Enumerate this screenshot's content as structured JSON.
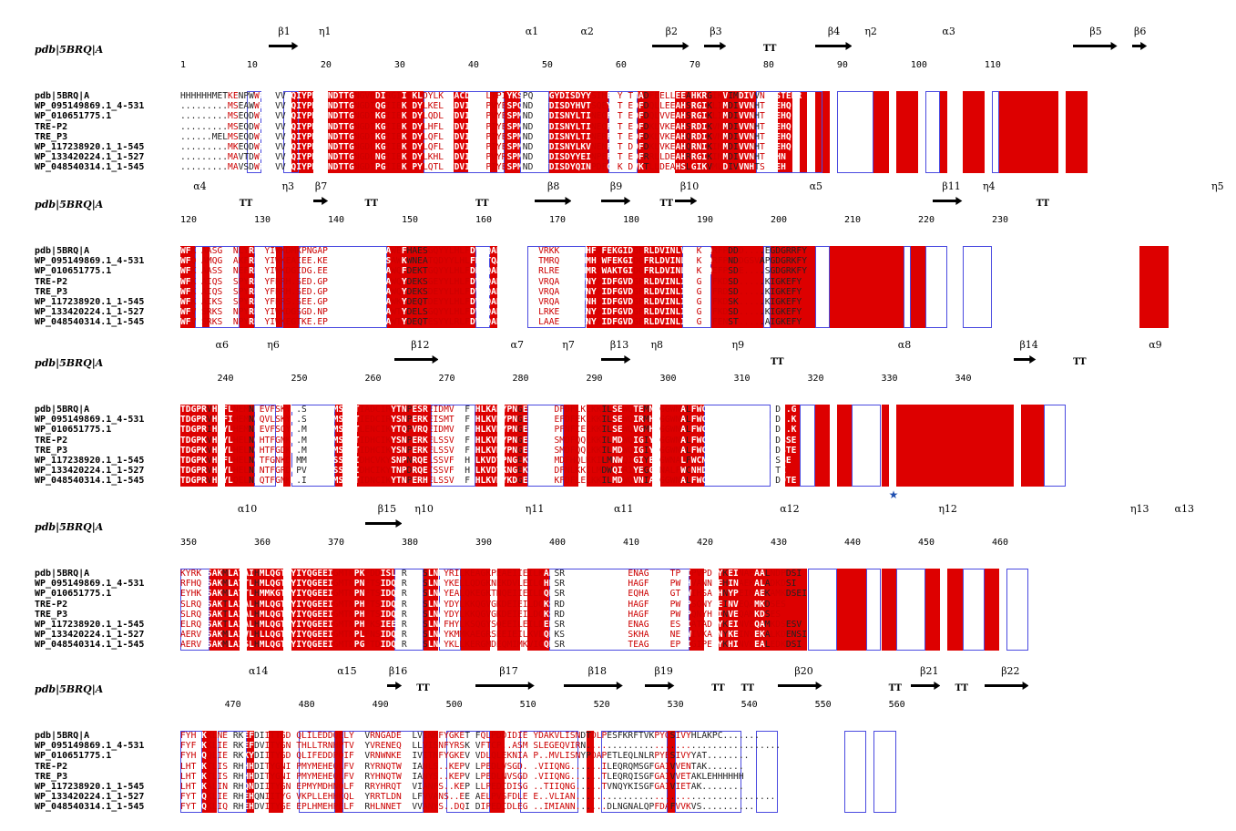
{
  "title_label": "pdb|5BRQ|A",
  "names": [
    "pdb|5BRQ|A",
    "WP_095149869.1_4-531",
    "WP_010651775.1",
    "TRE-P2",
    "TRE_P3",
    "WP_117238920.1_1-545",
    "WP_133420224.1_1-527",
    "WP_048540314.1_1-545"
  ],
  "blocks": [
    {
      "ruler": [
        "1",
        "10",
        "20",
        "30",
        "40",
        "50",
        "60",
        "70",
        "80",
        "90",
        "100",
        "110"
      ],
      "ss": [
        "β1",
        "η1",
        "α1",
        "α2",
        "β2",
        "β3",
        "TT",
        "β4",
        "η2",
        "α3",
        "β5",
        "β6"
      ],
      "seqs": [
        "HHHHHHMETKENPWWRKAVVYQIYPKSFNDTTGNGVGDIRGIIEKLDYLKELACDVIWLTPIYKSPQNDNGYDISDYYSIHEEYGTMADFEELLEEAHKRGIKVIMDIVVNHTSTEHR",
        ".........MSEAWWRKSVVYQIYPKSFNDTTGNGDIQGIIEKLDYLKELGADVIWLTPVYESPQNDNGYDISDYHVTSQEYGTMEDFDQLLEEAHSRGIKLIMDIVVNHTSTEHQ",
        ".........MSEQDWRKSVVYQIYPKSFNDTTGNGDIKGIIEKLDYLQDLGVDVIWLTPVYESPMNDNGYDISNYLTINEQFGTLEDFDQLVVEAHSRGIKLIMDIVVNHTSTEHQ",
        ".........MSEQDWRKSVVYQIYPKSFNDTTGNGDIKGIIEKLDYLHFLGVDVIWLTPIYESPMNDNGYDISNYLTINEQFGTLEDFDKLVKEAHSRDIKVMMDIVVNHTSTEHQ",
        "......MELMSEQDWRKSVVYQIYPKSFNDTTGNGDIKGIIEKLDYLQFLGVDVIWLTPIYESPMNDNGYDISNYLTINERFGTLEDFDKLVKEAHQRDIKVMMDIVVNHTSTEHQ",
        ".........MKEQDWRKSVVYQIYPKSFNDTTGNGDLKGIIEKLDYLQFLGIDVIWLTPIYESPMNDNGYDISNYLKVNENFGTLDDFDKLVKEAHQRNIKIMMDIVVNHTSTEHQ",
        ".........MAVTDWRKSVVYQIYPKSFNDTTGNGDLNGIIEKLDYLKHLGIDVIWLTPVYRSPMNDNGYDISDYYEINPEFGTKEDFRRLLDEAHRRGIKIMMDIVVNHTSTHN",
        ".........MAVSDWRKSVVYQIYPKSFNDTTGNGDIPGIIEKLPYLQTLGVDVIWLTPIYESPMNDNGYDISDYQINPDFGTKEDVKTLLDEAHSLGIKVMLDIVVNHTSTSEH"
      ]
    },
    {
      "ruler": [
        "120",
        "130",
        "140",
        "150",
        "160",
        "170",
        "180",
        "190",
        "200",
        "210",
        "220",
        "230"
      ],
      "ss": [
        "α4",
        "TT",
        "η3",
        "β7",
        "TT",
        "TT",
        "β8",
        "β9",
        "TT",
        "β10",
        "α5",
        "β11",
        "η4",
        "TT",
        "η5"
      ],
      "seqs": [
        "WFKEAASGKENLYRDFYIWKDMKPNGAPPTNWESKFGGGAWEFHAESGQYYLHLFDVTQADLNWENEAVRKKVYEMMHFWFEKGIDGFRLDVINLVISKDQRFPDDD....EGDGRRFY",
        "WFQSAMQGKDAKFRDFYIWKEAIEE.KEPPTNWQSKFGGSAWKWNEATQDYYLHLFDVTQADLNWENETMRQHVYDMMHFWFEKGIDGFRLDVINLISKDQRFPNDDGSVAPGDGRKFY",
        "WFKQAASSKDNEFRDFYIWKDGIDG.EEPNNWQSKFGGSAWQFDEKTGQYYLHLFDRTQADLNWENEERLREKLFEMMRFWAKTGIDGFRLDVINLISKNQEFPSDE....SGDGRKFY",
        "WFKEAIQSKDSPYRDYYFRRH.SED.GPATNWESKFGGSAWQYDEKSGEYYLHLFDVTQADLNWENPEVRQALYQIVNYWIDFGVDGFRLDVINLISKGE.FKDSD.....KIGKEFY",
        "WFKEAIQSKDSPYRDYYFRRH.SED.GPPTNWESKFGGSAWQYDEKSDEYYLHLFDVTQADLNWENPDVRQALYQIVNYWIDFGVDGFRLDVINLISKGE.FRDSD.....KIGKEFY",
        "WFKEAIKSKDSPYRDYYFRRS.SEE.GPPTNWESKFGGSAWKYDEQTDEYYLHLFDVTQADLNWENPDVRQALYKIVNHWIDFGVDGFRLDVINLISKGE.FKDSK.....KIGKEFY",
        "WFVESRKSKDNPYRDYYIWKDGSGD.NPPTNWESKFGGSAWTYDELSGQYYLHLFDVTQADLNWENESLRKEIYDMINYWIDFGVDGFRLDVINLISKGA.FKDSD.....KIGKEFY",
        "WFVESRKSKDNPYRDYYIWKEGTKE.EPPTNWESKFGGSAWTYDEQTESYYLRLFDVSQADLNWENDKLAAEIYEMINYWIDFGVDGFRLDVINLISKGA.FENST.....AIGKEFY"
      ]
    },
    {
      "ruler": [
        "240",
        "250",
        "260",
        "270",
        "280",
        "290",
        "300",
        "310",
        "320",
        "330",
        "340"
      ],
      "ss": [
        "α6",
        "η6",
        "β12",
        "α7",
        "η7",
        "β13",
        "η8",
        "η9",
        "TT",
        "α8",
        "β14",
        "TT",
        "α9"
      ],
      "seqs": [
        "TDGPRVHEFLNEMNREVFSKYD.SMTVGEMSSTTIADCIRYTNPESREIDMVFNFHHLKADYPNGEKWALADFDFLKLKKILSEWQTEMNKGGWNALFWCNHDQPRIVSRYGDD..G",
        "TDGPRVHEFIHEMNQQVLSKYD.SMTVGEMSSTTIEDCIRYSNPERKEISMTFNFHHLKVDYPNGEKWTVAEFDFEKLKKILSEWQIRMHEGGWNALFWCNHDQPRIVSRYGDD..K",
        "TDGPRIHEYLHEMNREVFSQYD.MLTVGEMSSTTLENCIKYTQPVRQEIDMVFNFHHLKVDYPNGEKWTKAPFNFIELKKILSEWQVGMHEGGWNALFWCNHDQPRIVSRYGDD..K",
        "TDGPKVHEYLHELNQHTFGNKN.MMTVGEMSSTTIDHCIKYSNPERKELSSVFNFHHLKVDYPNGEKWAKGSMDFQQLKKILMDWQIGIYEGGWNALFWCNHDQPRIVSRFGDDSSE",
        "TDGPKVHEYLHELNQHTFGDKH.MMTVGEMSSTTIDHCIKYSNPERKELSSVFNFHHLKVDYPNGEKWAKGSMDFQQLKKILMDWQIGIYEGGWNALFWCNHDQPRIVSRFGDDSTE",
        "TDGPKVHEFLHELNQTFGNKD.MMTVGEMSSTTIDHCVKYSNPNRQELSSVFNFHHLKVDYPNGEKWAKGKMDFHQLKKILMNWQIGIYEGGWNALFWCNHDQPRIVSRFGDDSSE",
        "TDGPRVHEYLHELNRNTFGRDGPVTVGEMSSTTIDHCIKYTNPDRQEISSVFNFHHLKVDYKNGEKWTMPFDFNLKKILMDWQIRIYEGGWNALFWCNHDQPRIVSRFGDDSNTE",
        "TDGPRVHEYLQELNKQTFGNKD.IMTVGEMSSTTIDNCIKYTNPERHELSSVFNFHHLKVDYKDGEKWSDMKFDFLELKKILMDWQVNIAKGGWNALFWCNHDQPRIVTRFGKDDTE"
      ]
    },
    {
      "ruler": [
        "350",
        "360",
        "370",
        "380",
        "390",
        "400",
        "410",
        "420",
        "430",
        "440",
        "450",
        "460"
      ],
      "ss": [
        "α10",
        "β15",
        "η10",
        "η11",
        "α11",
        "α12",
        "η12",
        "η13",
        "α13"
      ],
      "seqs": [
        "KYRKKSAKMLATAIHMLQGTPYIYQGEEIGMTNPKFDDISLYRDVESLNMYRILKEAGKPEAEIIEILKAKSRDNSRTPMQWNGEENAGFTAGTPWIPVPDNYKEINAEAALNDPDSI",
        "RFHQHSAKMLATTLHMLQGTPYIYQGEEIGMTNPNFTSIDQYRDVESLNMYKELLQDGKNEKDVLEILQHKSRDNSRTPMQWDDRHAGFTTGTPWIHVANNYEHINAEKALADKDSI",
        "EYHKESAKMLATTLHMMKGTPYIYQGEEIGMTNPNFTSIDQYRDVESLNAYEALQKEGKTNQEIIEILDQKSRDNSRTPMQWNSDEQHAGFTSGTPWIHSAAHNYPEINAEKAMKDSEI",
        "SLRQASAKTLAIALHMLQGTPYIYQGEEIGMTNPHFTSIDQYRDVESLNAYDYLKKQGVGKDEIEILDQKSRDNSRTPMQWNATNHAGFTSGEPWIPSQNYHEINVEQAMKDSES",
        "SLRQASAKTLAIALHMLQGTPYIYQGEEIGMTNPHFTSIDQYRDVESLNAYDYLKKQGVGKDEIEILDQKSRDNSRTPMQWNASNHAGFTSGEPWIPQNYHEINVEQAMKDSES",
        "ELRQASAKTLAIALHMLQGTPYIYQGEEIGMTNPHFKSIEEYRDVESLNAFHYLKSQGYSQEEILEILDEKSRDNSRTPMQWDDSENAGFTSGESWIATADNYKEINVEQAMKDSESV",
        "AERVKSAKMLAIVLHLLQGTPYIYQGEEIGMTNPLFNSIDQYRDVESLNAYKMMKAEGRSEEIEILKVLQDKSRDNSRTPMQWDDSKHAGFTTNEPWIVKADNYKEINVEKALKDENSI",
        "AERVKSAKMLAISLHMLQGTPYIYQGEEIGMTDPGFTDIDQYRDVESLNAYKLLKERGMDEQMIMKVIGQKSRDNSRTPMQWNAHTEAGFTEGEPWIGIPENYKHINVEEALEDKDSI"
      ]
    },
    {
      "ruler": [
        "470",
        "480",
        "490",
        "500",
        "510",
        "520",
        "530",
        "540",
        "550",
        "560"
      ],
      "ss": [
        "α14",
        "α15",
        "β16",
        "TT",
        "β17",
        "β18",
        "β19",
        "TT",
        "TT",
        "β20",
        "TT",
        "β21",
        "TT",
        "β22"
      ],
      "seqs": [
        "FYHYKKLNELRKEFDIITTGDYQLILEDDQELYAYVRNGADEKLLVINNFYGKETEFQLPDDIDIEGYDAKVLISNDTDLPESFKRFTVKPYQSIVYHLAKPC.......",
        "FYFYKKLIELRKEFDVITYGNYTHLLTRNHPTVFAYVRENEQEKLLVISNFYRSKSVFTCP..ASMVSLEGEQVIRN.....................................",
        "FYHYQQLIELRKKYDIITYGDYQLIFEDDPQIFAYVRNWNKEKLIVITNFYGKEVTVDLQLEKNIASP..MVLISNYPDAPETLEQLNLRPYESIVYYAT........",
        "LHTYKTLISLRHHHDITYGNIEPMYMEHEQLFVYHRYRNQTWLVIANLS..KEPVLLPEDLVSGD...VIIQNG......ILEQRQMSGFGAIVVENTAK.......",
        "LHTYKTLISLRHHHDITYGNIEPMYMEHEQLFVYHRYHNQTWLVIANYS..KEPVMLPEDLNVSGD..VIIQNG......TLEQRQISGFGAIVVETAKLEHHHHHH",
        "LHTYKALINLRHQNDIITYGNIEPMYMDHNQLFVYRRYHRQTWLVIANFS..KEPVLLPEDIDISGD..TIIQNG.....TVNQYKISGFGAIVIETAK........",
        "FYTYQKLIELRHEHQNIITYGEVKPLLEHHKQLFVYRRTLDNQTLFVVANS..EEPAELPVSFDLEGE..VLIAN......................................",
        "FYTYQKLIQLRHEHDVITYGEVEPLHMEHPELFVYRHLNNETWLVVANYS..DQIVDIPEDIDLEGE..IMIANN......DLNGNALQPFDAFVVKVS.........."
      ]
    }
  ],
  "colors": {
    "identical_bg": "#dd0000",
    "similar_text": "#dd0000",
    "box": "#4a4ae0",
    "star": "#1f4fb0"
  }
}
